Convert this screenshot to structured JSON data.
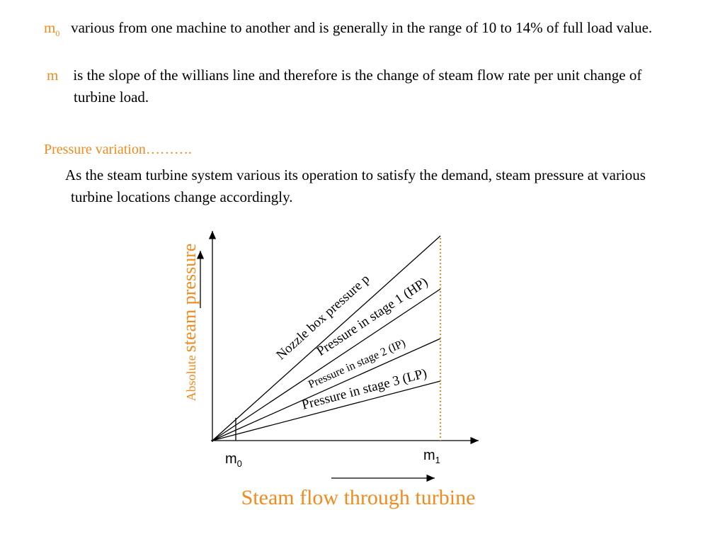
{
  "paragraphs": [
    {
      "symbol": "m",
      "subscript": "0",
      "text": "various from one machine to another and is generally in the range of 10 to 14% of full load value."
    },
    {
      "symbol": "m",
      "text": "is the slope of the willians line and therefore is the change of steam flow rate per unit change of turbine load."
    }
  ],
  "heading": "Pressure variation……….",
  "body": "As the steam turbine system various its operation to satisfy the demand, steam pressure at various turbine locations change accordingly.",
  "diagram": {
    "y_label_small": "Absolute",
    "y_label": "steam pressure",
    "lines": [
      "Nozzle box pressure p",
      "Pressure in stage 1 (HP)",
      "Pressure in stage 2 (IP)",
      "Pressure in stage 3 (LP)"
    ],
    "x_marks": [
      {
        "symbol": "m",
        "subscript": "0"
      },
      {
        "symbol": "m",
        "subscript": "1"
      }
    ],
    "x_label": "Steam flow through turbine"
  }
}
